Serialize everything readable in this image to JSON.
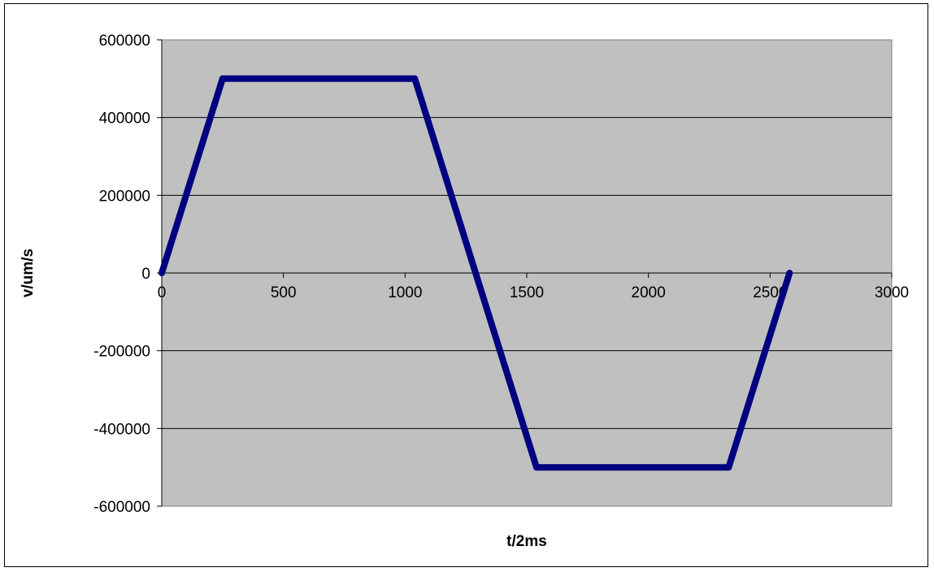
{
  "chart_data": {
    "type": "line",
    "title": "",
    "xlabel": "t/2ms",
    "ylabel": "v/um/s",
    "xlim": [
      0,
      3000
    ],
    "ylim": [
      -600000,
      600000
    ],
    "x_ticks": [
      0,
      500,
      1000,
      1500,
      2000,
      2500,
      3000
    ],
    "x_tick_labels": [
      "0",
      "500",
      "1000",
      "1500",
      "2000",
      "2500",
      "3000"
    ],
    "y_ticks": [
      600000,
      400000,
      200000,
      0,
      -200000,
      -400000,
      -600000
    ],
    "y_tick_labels": [
      "600000",
      "400000",
      "200000",
      "0",
      "-200000",
      "-400000",
      "-600000"
    ],
    "grid": {
      "horizontal": true,
      "vertical": false
    },
    "legend": "none",
    "series": [
      {
        "x": [
          0,
          250,
          1040,
          1290,
          1540,
          2330,
          2580
        ],
        "y": [
          0,
          500000,
          500000,
          0,
          -500000,
          -500000,
          0
        ],
        "color": "#000080"
      }
    ],
    "colors": {
      "plot_background": "#c0c0c0",
      "gridline": "#000000",
      "series_line": "#000080"
    }
  }
}
